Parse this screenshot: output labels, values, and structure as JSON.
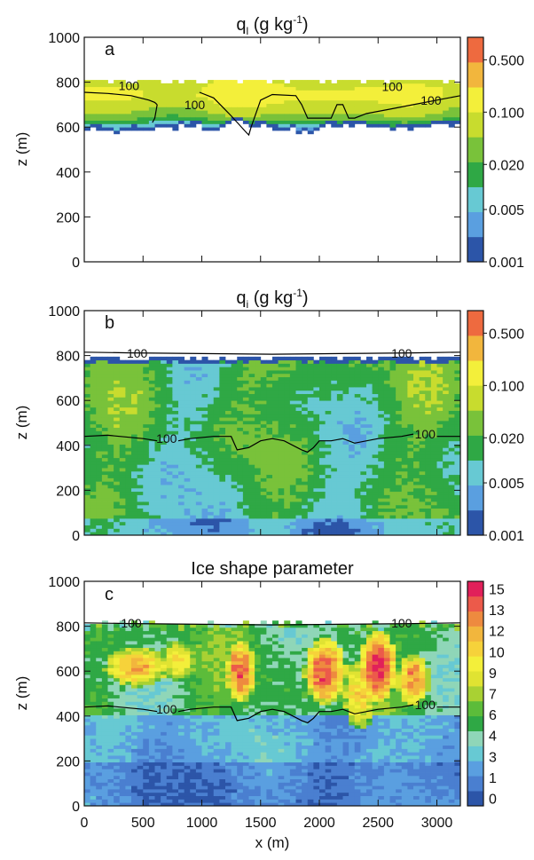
{
  "chart_data": [
    {
      "type": "heatmap",
      "panel_label": "a",
      "title": "q",
      "title_sub": "l",
      "title_unit": "(g kg",
      "title_sup": "-1",
      "title_close": ")",
      "ylabel": "z (m)",
      "xlabel": "",
      "xlim": [
        0,
        3200
      ],
      "ylim": [
        0,
        1000
      ],
      "y_ticks": [
        "0",
        "200",
        "400",
        "600",
        "800",
        "1000"
      ],
      "colorbar": {
        "scale": "log",
        "range": [
          0.001,
          1.0
        ],
        "tick_labels": [
          "0.001",
          "0.005",
          "0.020",
          "0.100",
          "0.500"
        ],
        "tick_values": [
          0.001,
          0.005,
          0.02,
          0.1,
          0.5
        ],
        "colors": [
          "#2c55a8",
          "#5a9fe0",
          "#67c9d3",
          "#2fa845",
          "#79c23a",
          "#c8dc2e",
          "#f3ef3a",
          "#f2b63d",
          "#ee6a3f"
        ]
      },
      "cloud_layer": {
        "base_z": [
          595,
          580,
          590,
          600,
          610,
          590,
          620,
          600,
          585,
          575,
          600,
          615,
          600,
          590,
          600,
          610
        ],
        "top_z": 805,
        "level_profile": [
          {
            "z": 800,
            "value": 0.08
          },
          {
            "z": 770,
            "value": 0.11
          },
          {
            "z": 740,
            "value": 0.12
          },
          {
            "z": 710,
            "value": 0.09
          },
          {
            "z": 680,
            "value": 0.06
          },
          {
            "z": 650,
            "value": 0.035
          },
          {
            "z": 625,
            "value": 0.015
          },
          {
            "z": 600,
            "value": 0.004
          }
        ]
      },
      "contour_label": "100",
      "contours": [
        {
          "x": [
            0,
            200,
            400,
            550,
            600,
            620
          ],
          "y": [
            755,
            750,
            740,
            720,
            710,
            700
          ]
        },
        {
          "x": [
            620,
            600,
            580
          ],
          "y": [
            700,
            640,
            620
          ]
        },
        {
          "x": [
            980,
            1100,
            1250,
            1380,
            1400,
            1420,
            1500,
            1600,
            1800,
            1850,
            1900,
            2000,
            2100,
            2150,
            2200,
            2250,
            2300,
            2400,
            2600,
            2800,
            3000,
            3200
          ],
          "y": [
            755,
            730,
            650,
            575,
            565,
            600,
            720,
            745,
            740,
            700,
            640,
            640,
            640,
            700,
            700,
            640,
            640,
            660,
            680,
            700,
            720,
            740
          ]
        }
      ],
      "contour_labels": [
        {
          "text": "100",
          "x": 380,
          "y": 785
        },
        {
          "text": "100",
          "x": 940,
          "y": 700
        },
        {
          "text": "100",
          "x": 2620,
          "y": 780
        },
        {
          "text": "100",
          "x": 2950,
          "y": 720
        }
      ]
    },
    {
      "type": "heatmap",
      "panel_label": "b",
      "title": "q",
      "title_sub": "i",
      "title_unit": "(g kg",
      "title_sup": "-1",
      "title_close": ")",
      "ylabel": "z (m)",
      "xlabel": "",
      "xlim": [
        0,
        3200
      ],
      "ylim": [
        0,
        1000
      ],
      "y_ticks": [
        "0",
        "200",
        "400",
        "600",
        "800",
        "1000"
      ],
      "colorbar": {
        "scale": "log",
        "range": [
          0.001,
          1.0
        ],
        "tick_labels": [
          "0.001",
          "0.005",
          "0.020",
          "0.100",
          "0.500"
        ],
        "tick_values": [
          0.001,
          0.005,
          0.02,
          0.1,
          0.5
        ],
        "colors": [
          "#2c55a8",
          "#5a9fe0",
          "#67c9d3",
          "#2fa845",
          "#79c23a",
          "#c8dc2e",
          "#f3ef3a",
          "#f2b63d",
          "#ee6a3f"
        ]
      },
      "field_top_z": 790,
      "contour_label": "100",
      "contours": [
        {
          "x": [
            0,
            400,
            800,
            1200,
            1600,
            2000,
            2400,
            2800,
            3200
          ],
          "y": [
            815,
            812,
            810,
            808,
            806,
            808,
            810,
            812,
            815
          ]
        },
        {
          "x": [
            0,
            200,
            500,
            620
          ],
          "y": [
            440,
            445,
            430,
            420
          ]
        },
        {
          "x": [
            800,
            900,
            1100,
            1250,
            1300,
            1400,
            1500,
            1600,
            1700,
            1850,
            1900,
            1950,
            2000,
            2100,
            2200,
            2300,
            2500,
            2700,
            2800
          ],
          "y": [
            420,
            430,
            440,
            440,
            380,
            390,
            420,
            430,
            420,
            380,
            370,
            390,
            420,
            420,
            430,
            410,
            430,
            440,
            450
          ]
        },
        {
          "x": [
            3000,
            3200
          ],
          "y": [
            440,
            440
          ]
        }
      ],
      "contour_labels": [
        {
          "text": "100",
          "x": 450,
          "y": 810
        },
        {
          "text": "100",
          "x": 2700,
          "y": 810
        },
        {
          "text": "100",
          "x": 700,
          "y": 430
        },
        {
          "text": "100",
          "x": 2900,
          "y": 450
        }
      ]
    },
    {
      "type": "heatmap",
      "panel_label": "c",
      "title": "Ice shape parameter",
      "ylabel": "z (m)",
      "xlabel": "x (m)",
      "xlim": [
        0,
        3200
      ],
      "ylim": [
        0,
        1000
      ],
      "x_ticks": [
        "0",
        "500",
        "1000",
        "1500",
        "2000",
        "2500",
        "3000"
      ],
      "y_ticks": [
        "0",
        "200",
        "400",
        "600",
        "800",
        "1000"
      ],
      "colorbar": {
        "scale": "linear",
        "tick_labels": [
          "0",
          "1",
          "3",
          "4",
          "6",
          "7",
          "9",
          "10",
          "12",
          "13",
          "15"
        ],
        "colors": [
          "#2c55a8",
          "#4a7fd0",
          "#5a9fe0",
          "#67c9d3",
          "#8fd6b8",
          "#2fa845",
          "#5cbc3a",
          "#a9d133",
          "#e0e332",
          "#f3ef3a",
          "#f6d23a",
          "#f2b63d",
          "#ee8a3f",
          "#ec5a4a",
          "#e1205a"
        ]
      },
      "field_top_z": 815,
      "contour_label": "100",
      "contours": [
        {
          "x": [
            0,
            400,
            800,
            1200,
            1600,
            2000,
            2400,
            2800,
            3200
          ],
          "y": [
            815,
            812,
            810,
            808,
            806,
            808,
            810,
            812,
            815
          ]
        },
        {
          "x": [
            0,
            200,
            500,
            620
          ],
          "y": [
            440,
            445,
            430,
            420
          ]
        },
        {
          "x": [
            800,
            900,
            1100,
            1250,
            1300,
            1400,
            1500,
            1600,
            1700,
            1850,
            1900,
            1950,
            2000,
            2100,
            2200,
            2300,
            2500,
            2700,
            2800
          ],
          "y": [
            420,
            430,
            440,
            440,
            380,
            390,
            420,
            430,
            420,
            380,
            370,
            390,
            420,
            420,
            430,
            410,
            430,
            440,
            450
          ]
        },
        {
          "x": [
            3000,
            3200
          ],
          "y": [
            440,
            440
          ]
        }
      ],
      "contour_labels": [
        {
          "text": "100",
          "x": 400,
          "y": 815
        },
        {
          "text": "100",
          "x": 2700,
          "y": 815
        },
        {
          "text": "100",
          "x": 700,
          "y": 430
        },
        {
          "text": "100",
          "x": 2900,
          "y": 450
        }
      ],
      "hotspots": [
        {
          "x": 450,
          "z": 620,
          "rx": 280,
          "rz": 90,
          "value": 11
        },
        {
          "x": 800,
          "z": 650,
          "rx": 150,
          "rz": 90,
          "value": 10
        },
        {
          "x": 1330,
          "z": 600,
          "rx": 120,
          "rz": 140,
          "value": 13
        },
        {
          "x": 2050,
          "z": 600,
          "rx": 180,
          "rz": 150,
          "value": 13
        },
        {
          "x": 2500,
          "z": 620,
          "rx": 160,
          "rz": 160,
          "value": 14
        },
        {
          "x": 2800,
          "z": 560,
          "rx": 140,
          "rz": 120,
          "value": 12
        },
        {
          "x": 2350,
          "z": 500,
          "rx": 160,
          "rz": 160,
          "value": 10
        }
      ]
    }
  ]
}
